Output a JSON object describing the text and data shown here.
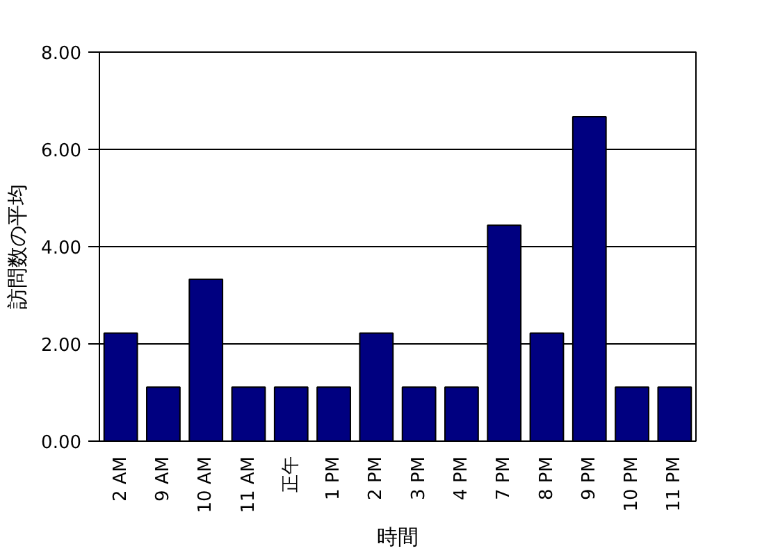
{
  "chart_data": {
    "type": "bar",
    "xlabel": "時間",
    "ylabel": "訪問数の平均",
    "categories": [
      "2 AM",
      "9 AM",
      "10 AM",
      "11 AM",
      "正午",
      "1 PM",
      "2 PM",
      "3 PM",
      "4 PM",
      "7 PM",
      "8 PM",
      "9 PM",
      "10 PM",
      "11 PM"
    ],
    "values": [
      2.22,
      1.11,
      3.33,
      1.11,
      1.11,
      1.11,
      2.22,
      1.11,
      1.11,
      4.44,
      2.22,
      6.67,
      1.11,
      1.11
    ],
    "color": "#000080",
    "ylim": [
      0,
      8
    ],
    "yticks": [
      {
        "value": 0,
        "label": "0.00"
      },
      {
        "value": 2,
        "label": "2.00"
      },
      {
        "value": 4,
        "label": "4.00"
      },
      {
        "value": 6,
        "label": "6.00"
      },
      {
        "value": 8,
        "label": "8.00"
      }
    ],
    "grid": "y"
  }
}
